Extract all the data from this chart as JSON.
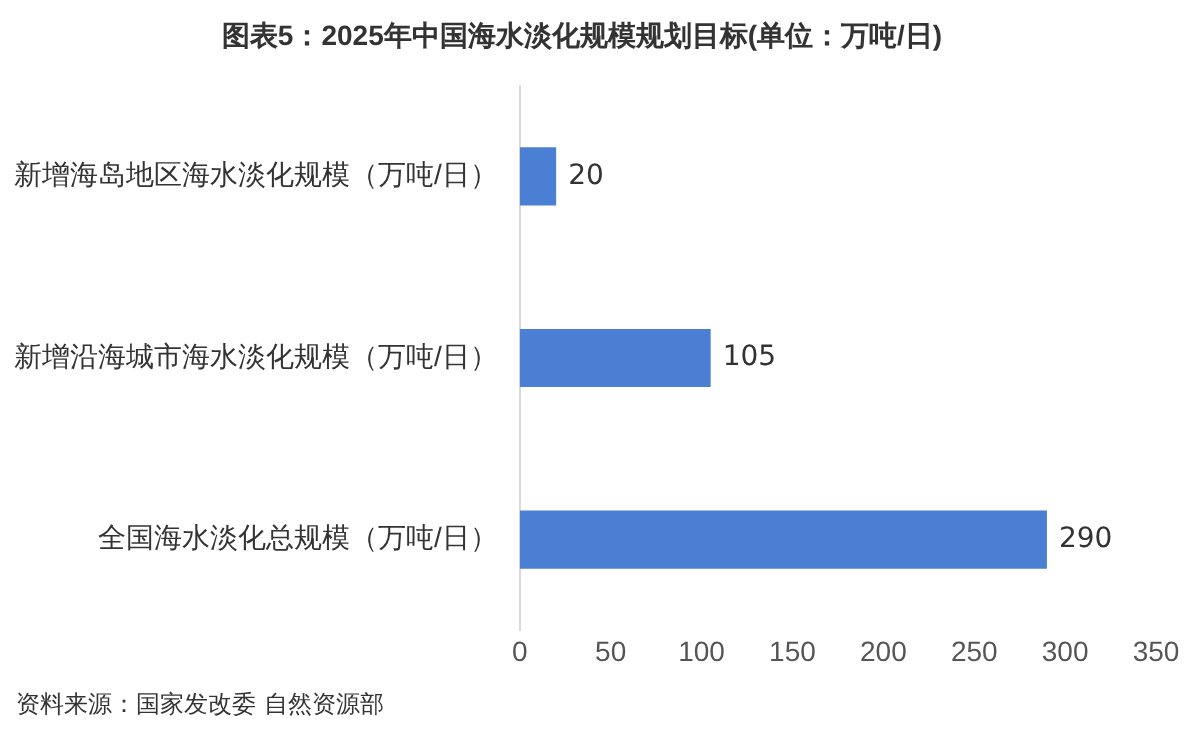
{
  "chart_data": {
    "type": "bar",
    "orientation": "horizontal",
    "title": "图表5：2025年中国海水淡化规模规划目标(单位：万吨/日)",
    "categories": [
      "新增海岛地区海水淡化规模（万吨/日）",
      "新增沿海城市海水淡化规模（万吨/日）",
      "全国海水淡化总规模（万吨/日）"
    ],
    "values": [
      20,
      105,
      290
    ],
    "color": "#4a7fd4",
    "xlim": [
      0,
      350
    ],
    "xticks": [
      0,
      50,
      100,
      150,
      200,
      250,
      300,
      350
    ],
    "grid": false,
    "legend": false,
    "data_labels": true,
    "annotations": [
      "资料来源：国家发改委 自然资源部"
    ]
  }
}
